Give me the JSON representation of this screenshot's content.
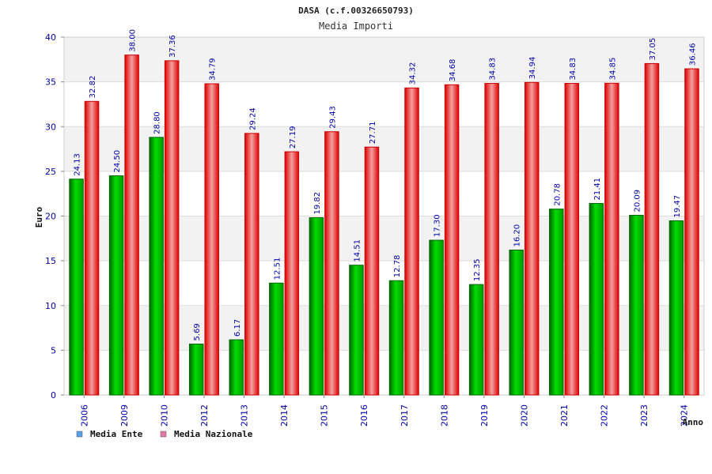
{
  "chart_data": {
    "type": "bar",
    "title": "DASA (c.f.00326650793)",
    "subtitle": "Media Importi",
    "xlabel": "Anno",
    "ylabel": "Euro",
    "ylim": [
      0,
      40
    ],
    "yticks": [
      "0",
      "5",
      "10",
      "15",
      "20",
      "25",
      "30",
      "35",
      "40"
    ],
    "categories": [
      "2006",
      "2009",
      "2010",
      "2012",
      "2013",
      "2014",
      "2015",
      "2016",
      "2017",
      "2018",
      "2019",
      "2020",
      "2021",
      "2022",
      "2023",
      "2024"
    ],
    "series": [
      {
        "name": "Media Ente",
        "color": "#00bb00",
        "legend_color": "#5aa0e6",
        "values": [
          24.13,
          24.5,
          28.8,
          5.69,
          6.17,
          12.51,
          19.82,
          14.51,
          12.78,
          17.3,
          12.35,
          16.2,
          20.78,
          21.41,
          20.09,
          19.47
        ],
        "labels": [
          "24.13",
          "24.50",
          "28.80",
          "5.69",
          "6.17",
          "12.51",
          "19.82",
          "14.51",
          "12.78",
          "17.30",
          "12.35",
          "16.20",
          "20.78",
          "21.41",
          "20.09",
          "19.47"
        ]
      },
      {
        "name": "Media Nazionale",
        "color": "#ee1111",
        "legend_color": "#e27aa8",
        "values": [
          32.82,
          38.0,
          37.36,
          34.79,
          29.24,
          27.19,
          29.43,
          27.71,
          34.32,
          34.68,
          34.83,
          34.94,
          34.83,
          34.85,
          37.05,
          36.46
        ],
        "labels": [
          "32.82",
          "38.00",
          "37.36",
          "34.79",
          "29.24",
          "27.19",
          "29.43",
          "27.71",
          "34.32",
          "34.68",
          "34.83",
          "34.94",
          "34.83",
          "34.85",
          "37.05",
          "36.46"
        ]
      }
    ],
    "grid": true,
    "legend_position": "bottom-left"
  }
}
